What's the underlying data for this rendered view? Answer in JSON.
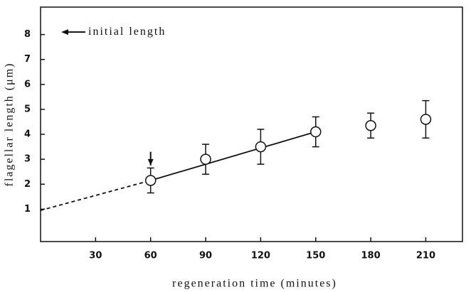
{
  "chart_data": {
    "type": "scatter",
    "xlabel": "regeneration time (minutes)",
    "ylabel": "flagellar length (μm)",
    "x": [
      60,
      90,
      120,
      150,
      180,
      210
    ],
    "values": [
      2.15,
      3.0,
      3.5,
      4.1,
      4.35,
      4.6
    ],
    "errors": [
      0.5,
      0.6,
      0.7,
      0.6,
      0.5,
      0.75
    ],
    "color": "#111111",
    "xlim": [
      0,
      230
    ],
    "xticks": [
      30,
      60,
      90,
      120,
      150,
      180,
      210
    ],
    "ylim": [
      -0.3,
      9.1
    ],
    "yticks": [
      1,
      2,
      3,
      4,
      5,
      6,
      7,
      8
    ],
    "fit_line": {
      "x": [
        60,
        150
      ],
      "values": [
        2.15,
        4.1
      ]
    },
    "extrapolation": {
      "x": [
        0,
        60
      ],
      "values": [
        0.95,
        2.15
      ]
    },
    "annotation": {
      "text": "initial length",
      "value": 8.1
    },
    "marker_arrow": {
      "x": 60,
      "from": 3.3,
      "to": 2.75
    }
  }
}
